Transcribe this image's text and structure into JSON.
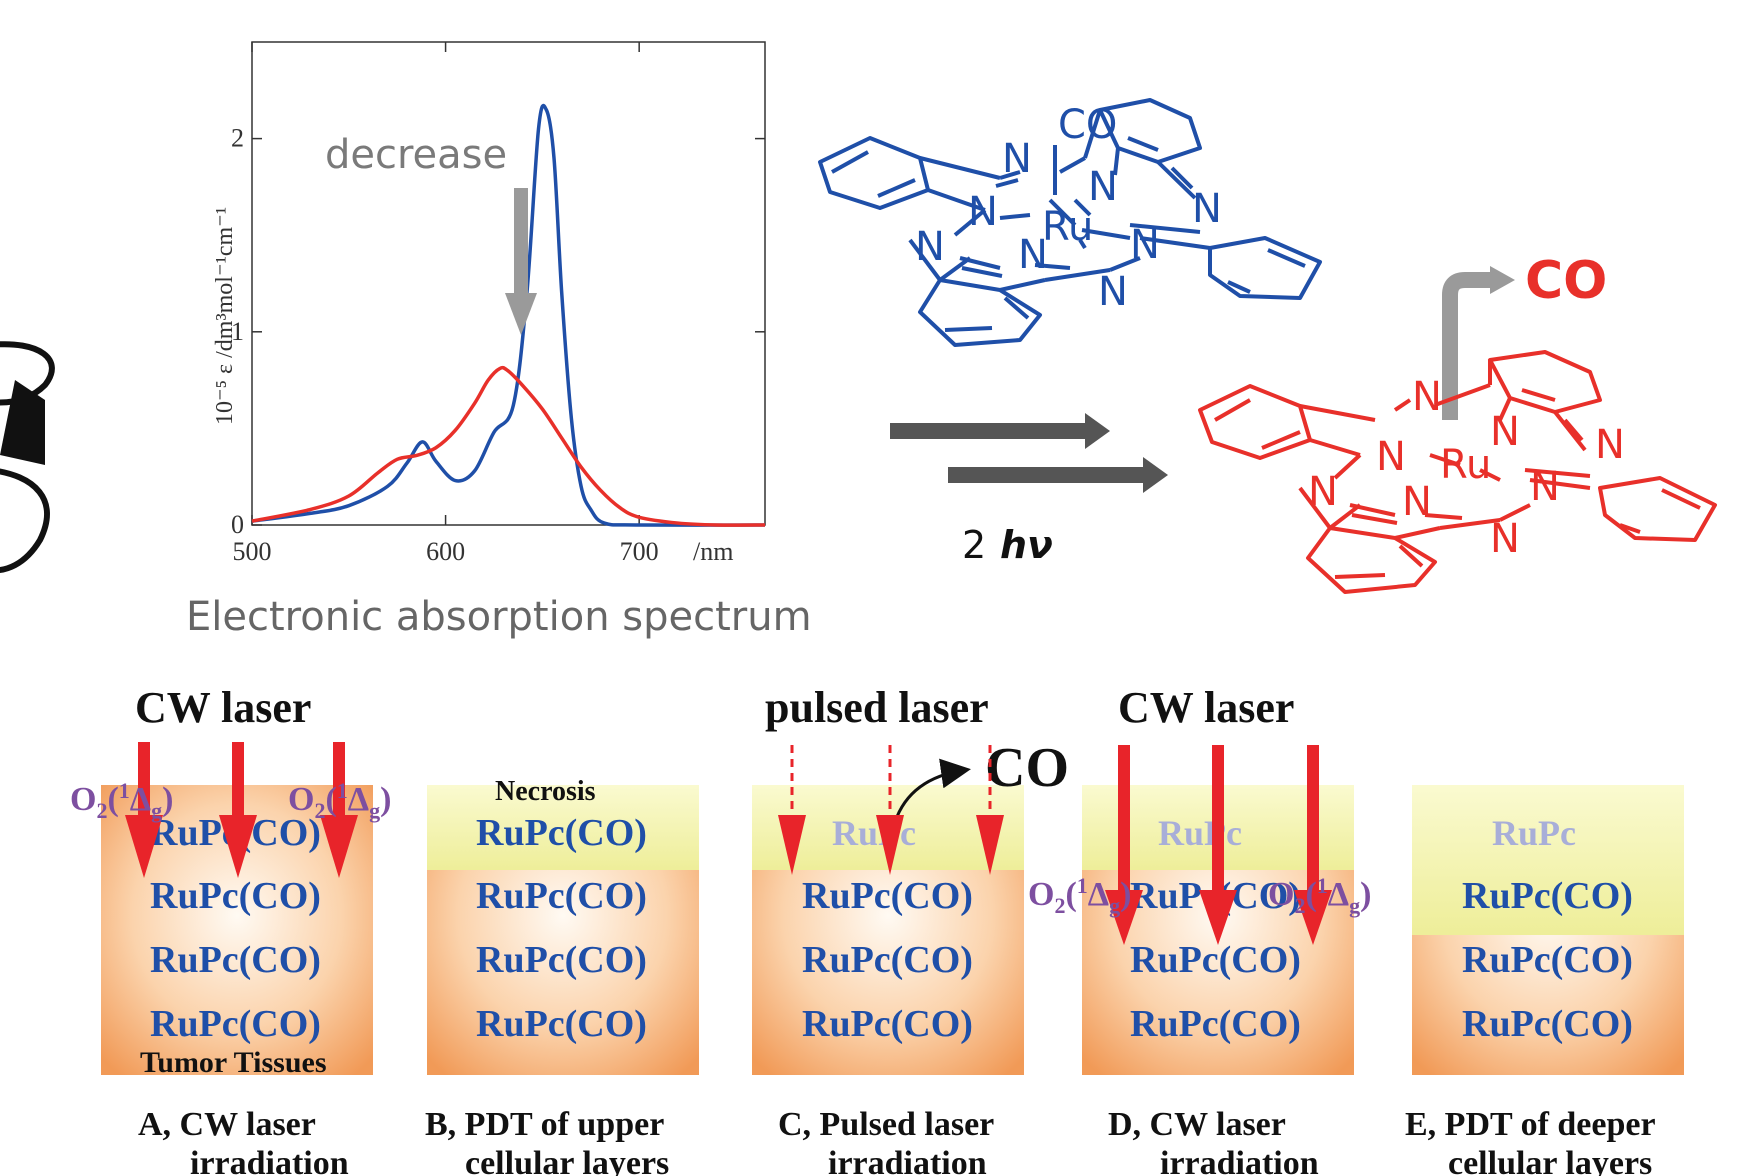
{
  "chart_data": {
    "type": "line",
    "xlabel": "/nm",
    "ylabel": "10⁻⁵ ε /dm³mol⁻¹cm⁻¹",
    "x_ticks": [
      "500",
      "600",
      "700"
    ],
    "y_ticks": [
      "0",
      "1",
      "2"
    ],
    "xlim": [
      500,
      765
    ],
    "ylim": [
      0,
      2.5
    ],
    "annotation": "decrease",
    "caption": "Electronic absorption spectrum",
    "series": [
      {
        "color": "#1f4fa8",
        "x": [
          500,
          530,
          550,
          570,
          580,
          588,
          595,
          605,
          615,
          625,
          635,
          642,
          648,
          652,
          656,
          660,
          665,
          670,
          675,
          682,
          700,
          765
        ],
        "y": [
          0.02,
          0.06,
          0.1,
          0.2,
          0.32,
          0.43,
          0.33,
          0.23,
          0.28,
          0.48,
          0.62,
          1.2,
          2.05,
          2.15,
          1.9,
          1.2,
          0.55,
          0.2,
          0.08,
          0.01,
          0.0,
          0.0
        ]
      },
      {
        "color": "#e8302a",
        "x": [
          500,
          530,
          550,
          565,
          575,
          585,
          595,
          605,
          615,
          622,
          628,
          632,
          640,
          650,
          660,
          670,
          680,
          690,
          700,
          720,
          740,
          765
        ],
        "y": [
          0.02,
          0.08,
          0.15,
          0.27,
          0.34,
          0.36,
          0.4,
          0.49,
          0.63,
          0.75,
          0.81,
          0.8,
          0.72,
          0.6,
          0.45,
          0.3,
          0.18,
          0.09,
          0.04,
          0.01,
          0.0,
          0.0
        ]
      }
    ]
  },
  "reaction": {
    "label_2": "2",
    "label_hv": "hν",
    "co_released": "CO",
    "atoms": {
      "co": "CO",
      "ru": "Ru",
      "n": "N"
    }
  },
  "panels": {
    "headers": {
      "a": "CW laser",
      "c": "pulsed laser",
      "d": "CW laser"
    },
    "co_product": "CO",
    "o2_base": "O",
    "o2_sub": "2",
    "o2_paren_open": "(",
    "o2_sup": "1",
    "o2_delta": "Δ",
    "o2_delta_sub": "g",
    "o2_paren_close": ")",
    "necrosis": "Necrosis",
    "tumor": "Tumor Tissues",
    "rupc_co": "RuPc(CO)",
    "rupc": "RuPc",
    "captions": [
      {
        "line1": "A, CW laser",
        "line2": "irradiation"
      },
      {
        "line1": "B, PDT of upper",
        "line2": "cellular layers"
      },
      {
        "line1": "C, Pulsed laser",
        "line2": "irradiation"
      },
      {
        "line1": "D, CW laser",
        "line2": "irradiation"
      },
      {
        "line1": "E, PDT of deeper",
        "line2": "cellular layers"
      }
    ]
  },
  "colors": {
    "blue_molecule": "#1f4fa8",
    "red_molecule": "#e8302a",
    "arrow_gray": "#9a9a9a",
    "dark_arrow": "#555555",
    "tissue_orange": "#f6a76a",
    "necrosis_yellow": "#f3f2a8",
    "text_blue": "#1f4fa8",
    "faded_text": "#a8aed8",
    "o2_purple": "#7d4fa0",
    "laser_red": "#e8242a"
  }
}
